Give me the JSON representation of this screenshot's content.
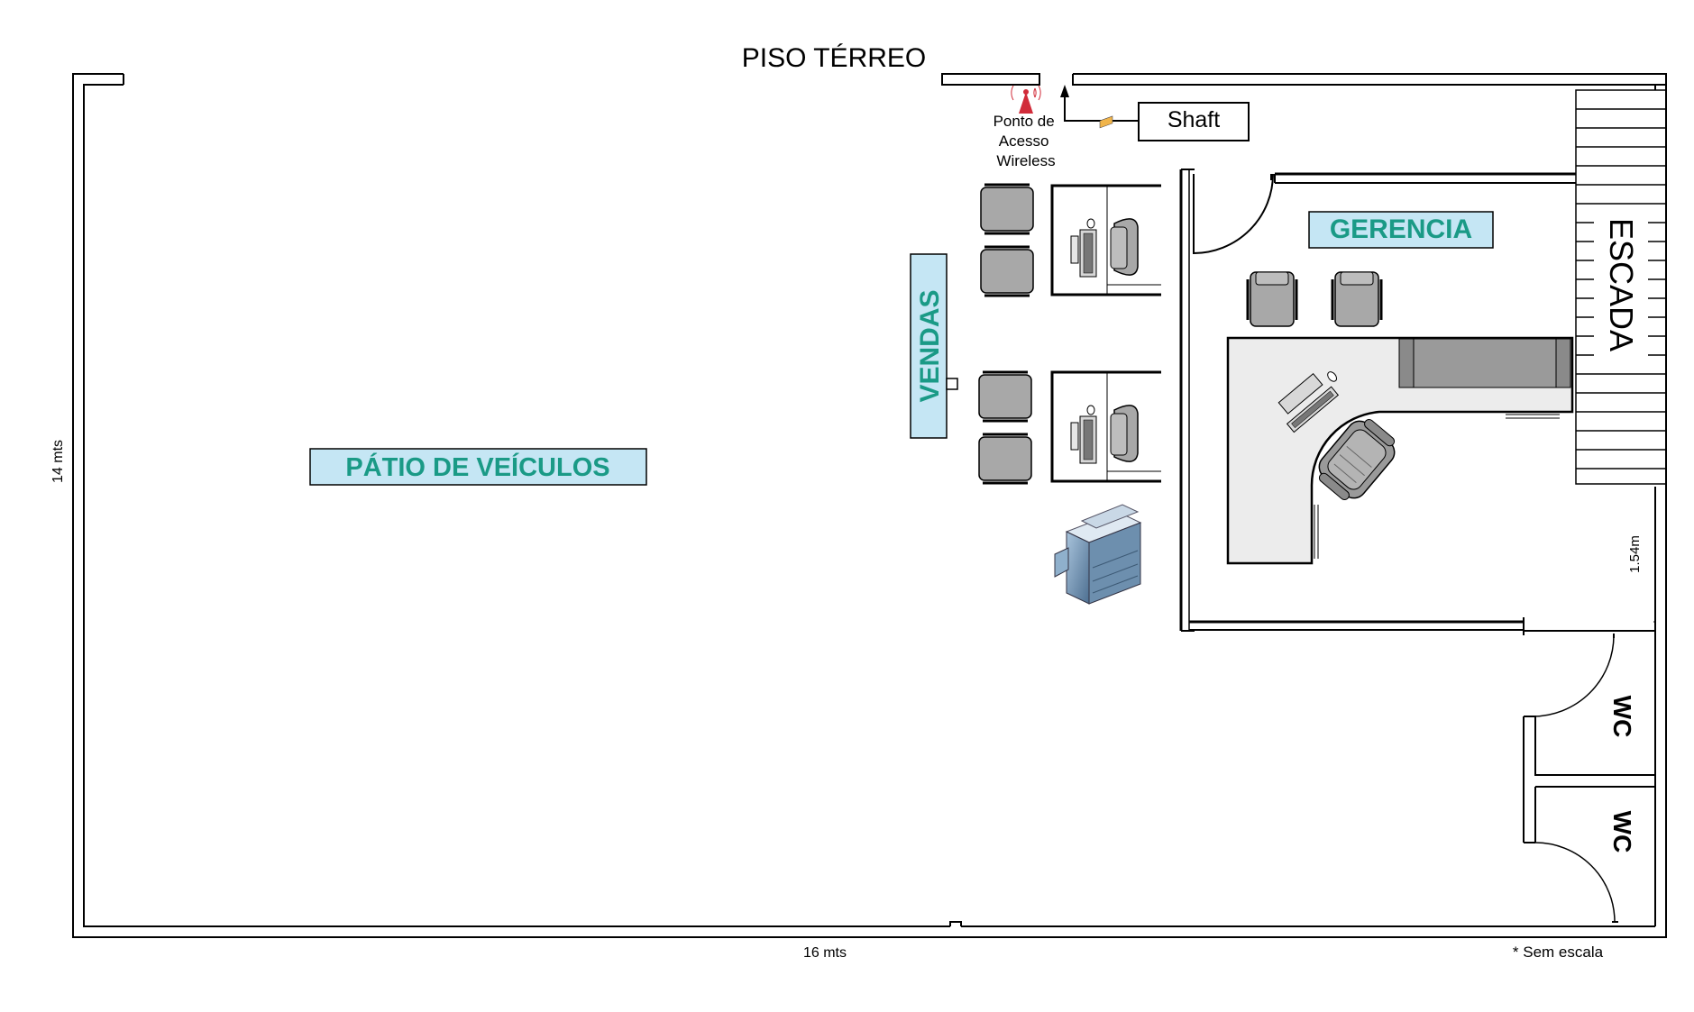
{
  "plan": {
    "title": "PISO TÉRREO",
    "width_label": "16 mts",
    "height_label": "14 mts",
    "corridor_label": "1.54m",
    "scale_note": "* Sem escala"
  },
  "rooms": {
    "patio": "PÁTIO DE VEÍCULOS",
    "vendas": "VENDAS",
    "gerencia": "GERENCIA",
    "escada": "ESCADA",
    "wc_upper": "WC",
    "wc_lower": "WC"
  },
  "elements": {
    "shaft": "Shaft",
    "wireless_line1": "Ponto de",
    "wireless_line2": "Acesso",
    "wireless_line3": "Wireless"
  },
  "colors": {
    "label_fill": "#c5e6f4",
    "label_text": "#1a9a86",
    "wall": "#000000",
    "furniture_gray": "#a8a8a8",
    "wireless_red": "#d12c3a"
  }
}
